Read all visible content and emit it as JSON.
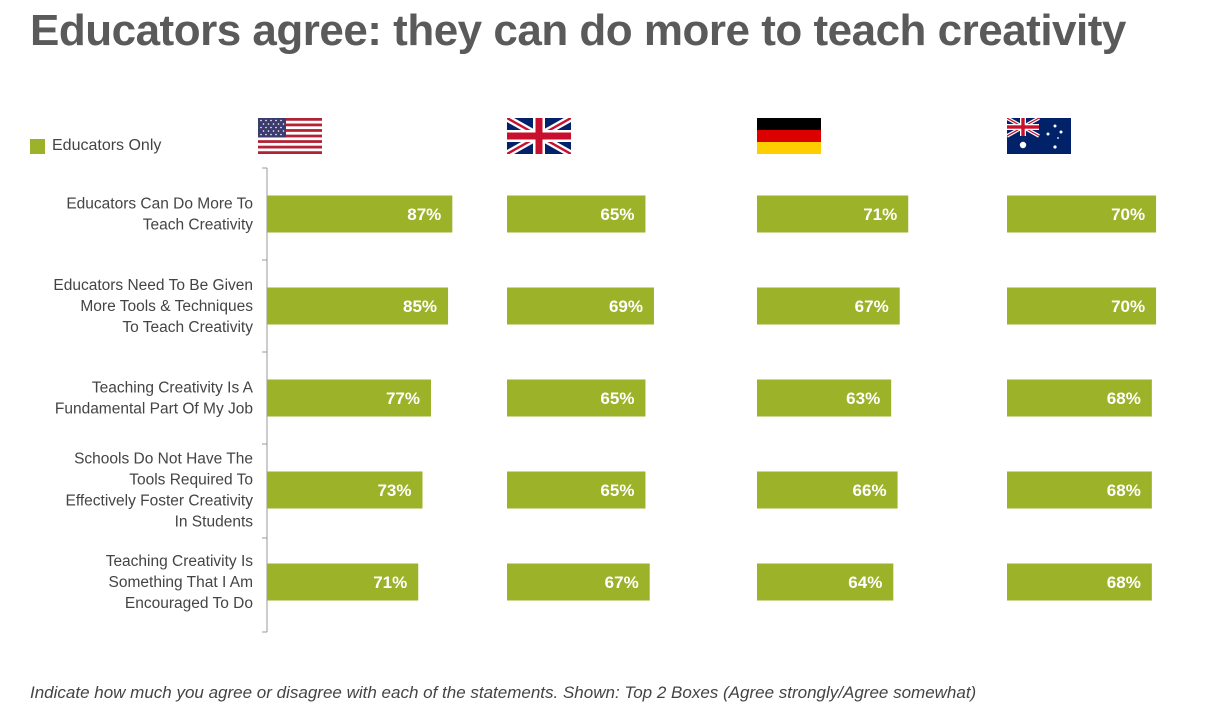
{
  "title": "Educators agree: they can do more to teach creativity",
  "footnote": "Indicate how much you agree or disagree with each of the statements. Shown: Top 2 Boxes (Agree strongly/Agree somewhat)",
  "legend": {
    "label": "Educators Only",
    "color": "#9cb228"
  },
  "countries": [
    {
      "name": "United States",
      "flag": "us-flag-icon"
    },
    {
      "name": "United Kingdom",
      "flag": "uk-flag-icon"
    },
    {
      "name": "Germany",
      "flag": "germany-flag-icon"
    },
    {
      "name": "Australia",
      "flag": "australia-flag-icon"
    }
  ],
  "chart_data": {
    "type": "bar",
    "orientation": "horizontal",
    "title": "Educators agree: they can do more to teach creativity",
    "categories": [
      [
        "Educators Can Do More To",
        "Teach Creativity"
      ],
      [
        "Educators Need To Be Given",
        "More Tools & Techniques",
        "To Teach Creativity"
      ],
      [
        "Teaching Creativity Is A",
        "Fundamental Part Of My Job"
      ],
      [
        "Schools Do Not Have The",
        "Tools Required To",
        "Effectively Foster Creativity",
        "In Students"
      ],
      [
        "Teaching Creativity Is",
        "Something That I Am",
        "Encouraged To Do"
      ]
    ],
    "series": [
      {
        "values": [
          87,
          85,
          77,
          73,
          71
        ],
        "labels": [
          "87%",
          "85%",
          "77%",
          "73%",
          "71%"
        ]
      },
      {
        "values": [
          65,
          69,
          65,
          65,
          67
        ],
        "labels": [
          "65%",
          "69%",
          "65%",
          "65%",
          "67%"
        ]
      },
      {
        "values": [
          71,
          67,
          63,
          66,
          64
        ],
        "labels": [
          "71%",
          "67%",
          "63%",
          "66%",
          "64%"
        ]
      },
      {
        "values": [
          70,
          70,
          68,
          68,
          68
        ],
        "labels": [
          "70%",
          "70%",
          "68%",
          "68%",
          "68%"
        ]
      }
    ],
    "unit": "%",
    "bar_color": "#9cb228",
    "label_color": "#ffffff",
    "legend_position": "top-left",
    "grid": false
  }
}
